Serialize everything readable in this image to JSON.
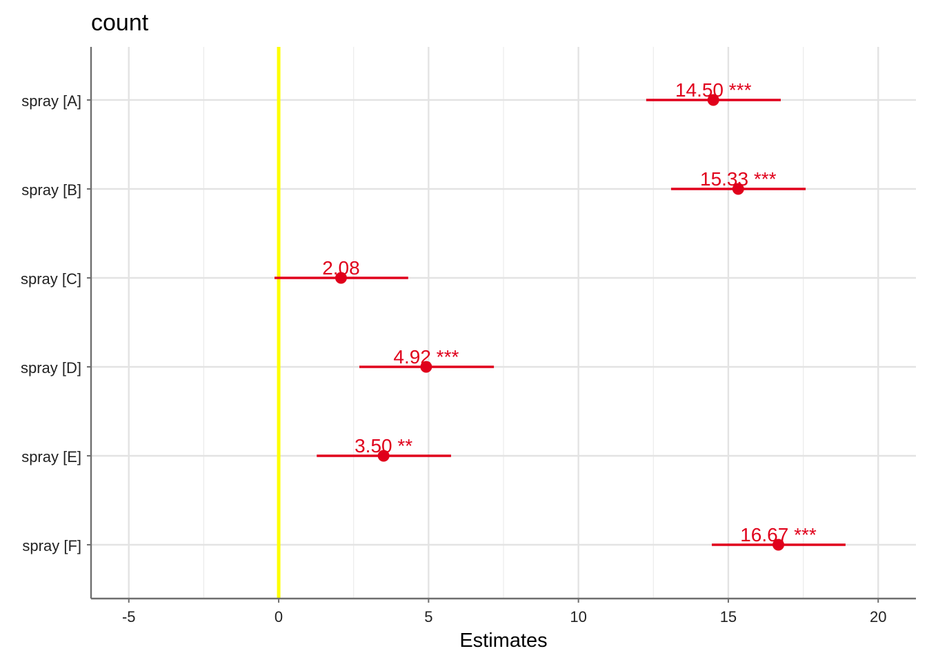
{
  "chart_data": {
    "type": "scatter",
    "subtype": "forest-plot",
    "title": "count",
    "xlabel": "Estimates",
    "ylabel": "",
    "xlim": [
      -6.26,
      21.26
    ],
    "x_ticks": [
      -5,
      0,
      5,
      10,
      15,
      20
    ],
    "x_tick_labels": [
      "-5",
      "0",
      "5",
      "10",
      "15",
      "20"
    ],
    "grid": true,
    "reference_line": {
      "x": 0,
      "color": "#ffff00"
    },
    "point_color": "#e0001b",
    "categories": [
      "spray [A]",
      "spray [B]",
      "spray [C]",
      "spray [D]",
      "spray [E]",
      "spray [F]"
    ],
    "estimates": [
      14.5,
      15.33,
      2.08,
      4.92,
      3.5,
      16.67
    ],
    "ci_low": [
      12.26,
      13.09,
      -0.14,
      2.69,
      1.27,
      14.45
    ],
    "ci_high": [
      16.75,
      17.58,
      4.32,
      7.18,
      5.75,
      18.91
    ],
    "labels": [
      "14.50 ***",
      "15.33 ***",
      "2.08",
      "4.92 ***",
      "3.50 **",
      "16.67 ***"
    ]
  }
}
